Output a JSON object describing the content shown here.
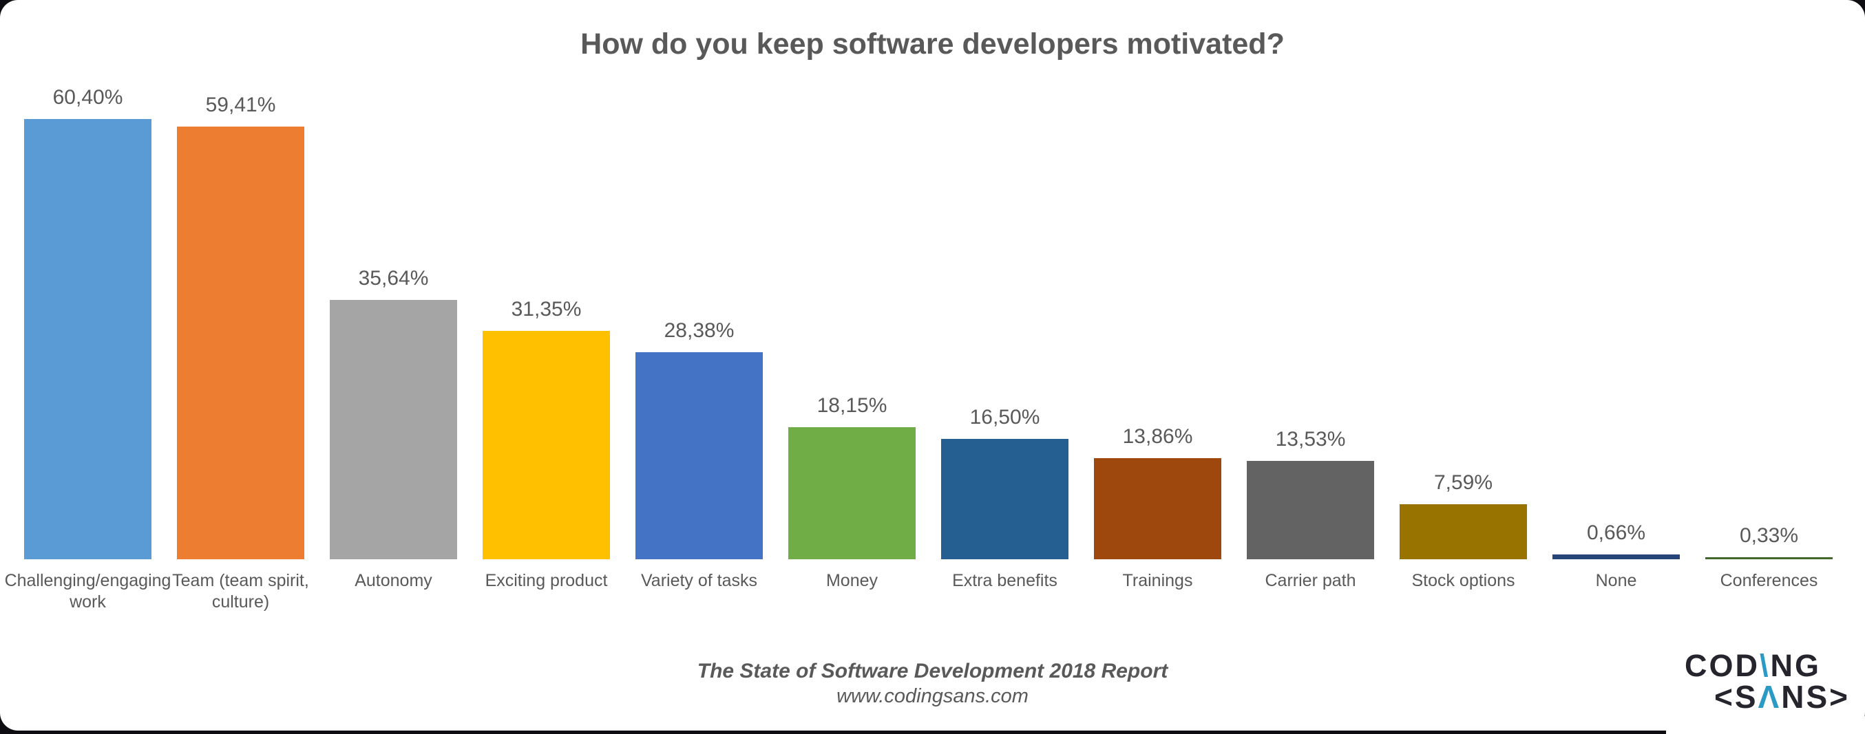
{
  "chart_data": {
    "type": "bar",
    "title": "How do you keep software developers motivated?",
    "categories": [
      "Challenging/engaging work",
      "Team (team spirit, culture)",
      "Autonomy",
      "Exciting product",
      "Variety of tasks",
      "Money",
      "Extra benefits",
      "Trainings",
      "Carrier path",
      "Stock options",
      "None",
      "Conferences"
    ],
    "values": [
      60.4,
      59.41,
      35.64,
      31.35,
      28.38,
      18.15,
      16.5,
      13.86,
      13.53,
      7.59,
      0.66,
      0.33
    ],
    "value_labels": [
      "60,40%",
      "59,41%",
      "35,64%",
      "31,35%",
      "28,38%",
      "18,15%",
      "16,50%",
      "13,86%",
      "13,53%",
      "7,59%",
      "0,66%",
      "0,33%"
    ],
    "bar_colors": [
      "#5B9BD5",
      "#ED7D31",
      "#A5A5A5",
      "#FFC000",
      "#4472C4",
      "#70AD47",
      "#255E91",
      "#9E480E",
      "#636363",
      "#997300",
      "#264478",
      "#43682B"
    ],
    "xlabel": "",
    "ylabel": "",
    "ylim": [
      0,
      65
    ],
    "grid": false,
    "legend": "none",
    "axis_lines": "none",
    "label_color": "#595959"
  },
  "footer": {
    "report": "The State of Software Development 2018 Report",
    "website": "www.codingsans.com"
  },
  "logo": {
    "line1_pre": "COD",
    "line1_accent": "\\",
    "line1_post": "NG",
    "line2_pre": "<S",
    "line2_accent": "Λ",
    "line2_post": "NS>",
    "dark_color": "#26252d",
    "accent_color": "#2b9ac4"
  },
  "colors": {
    "text": "#595959",
    "card_background": "#ffffff",
    "page_edge": "#0e0e12"
  }
}
